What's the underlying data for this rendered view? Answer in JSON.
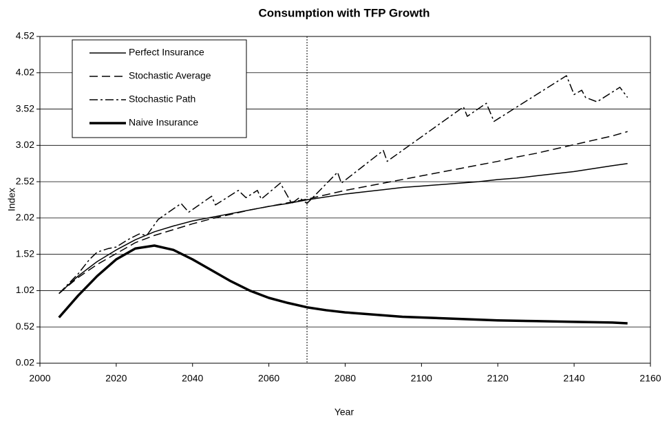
{
  "chart_data": {
    "type": "line",
    "title": "Consumption with TFP Growth",
    "xlabel": "Year",
    "ylabel": "Index",
    "xlim": [
      2000,
      2160
    ],
    "xticks": [
      2000,
      2020,
      2040,
      2060,
      2080,
      2100,
      2120,
      2140,
      2160
    ],
    "ylim": [
      0.02,
      4.52
    ],
    "yticks": [
      0.02,
      0.52,
      1.02,
      1.52,
      2.02,
      2.52,
      3.02,
      3.52,
      4.02,
      4.52
    ],
    "grid": true,
    "legend": "upper left",
    "vline": 2070,
    "series": [
      {
        "name": "Perfect Insurance",
        "color": "#000000",
        "style": "solid",
        "width": 1.5,
        "x": [
          2005,
          2010,
          2015,
          2020,
          2025,
          2030,
          2035,
          2040,
          2045,
          2050,
          2055,
          2060,
          2065,
          2070,
          2075,
          2080,
          2085,
          2090,
          2095,
          2100,
          2105,
          2110,
          2115,
          2120,
          2125,
          2130,
          2135,
          2140,
          2145,
          2150,
          2154
        ],
        "values": [
          0.98,
          1.22,
          1.42,
          1.58,
          1.72,
          1.83,
          1.91,
          1.98,
          2.03,
          2.08,
          2.13,
          2.18,
          2.22,
          2.27,
          2.31,
          2.35,
          2.38,
          2.41,
          2.44,
          2.46,
          2.48,
          2.5,
          2.52,
          2.55,
          2.57,
          2.6,
          2.63,
          2.66,
          2.7,
          2.74,
          2.77
        ]
      },
      {
        "name": "Stochastic Average",
        "color": "#000000",
        "style": "dashed",
        "width": 1.5,
        "x": [
          2005,
          2010,
          2015,
          2020,
          2025,
          2030,
          2035,
          2040,
          2045,
          2050,
          2055,
          2060,
          2065,
          2070,
          2075,
          2080,
          2085,
          2090,
          2095,
          2100,
          2105,
          2110,
          2115,
          2120,
          2125,
          2130,
          2135,
          2140,
          2145,
          2150,
          2154
        ],
        "values": [
          0.98,
          1.2,
          1.38,
          1.53,
          1.68,
          1.78,
          1.86,
          1.94,
          2.01,
          2.07,
          2.13,
          2.18,
          2.23,
          2.28,
          2.34,
          2.4,
          2.45,
          2.5,
          2.55,
          2.6,
          2.65,
          2.7,
          2.75,
          2.8,
          2.86,
          2.91,
          2.97,
          3.03,
          3.09,
          3.15,
          3.21
        ]
      },
      {
        "name": "Stochastic Path",
        "color": "#000000",
        "style": "dashdot",
        "width": 1.5,
        "x": [
          2005,
          2010,
          2013,
          2015,
          2018,
          2020,
          2023,
          2026,
          2028,
          2031,
          2037,
          2039,
          2045,
          2046,
          2052,
          2054,
          2057,
          2058,
          2063,
          2066,
          2068,
          2070,
          2078,
          2079,
          2090,
          2091,
          2111,
          2112,
          2117,
          2119,
          2138,
          2140,
          2142,
          2143,
          2146,
          2152,
          2154
        ],
        "values": [
          0.98,
          1.25,
          1.45,
          1.55,
          1.6,
          1.62,
          1.72,
          1.8,
          1.78,
          2.0,
          2.22,
          2.1,
          2.32,
          2.2,
          2.4,
          2.3,
          2.4,
          2.28,
          2.5,
          2.22,
          2.3,
          2.22,
          2.65,
          2.5,
          2.95,
          2.8,
          3.55,
          3.42,
          3.6,
          3.35,
          3.98,
          3.72,
          3.78,
          3.68,
          3.62,
          3.82,
          3.68
        ]
      },
      {
        "name": "Naive Insurance",
        "color": "#000000",
        "style": "solid",
        "width": 3.5,
        "x": [
          2005,
          2010,
          2015,
          2020,
          2025,
          2030,
          2035,
          2040,
          2045,
          2050,
          2055,
          2060,
          2065,
          2070,
          2075,
          2080,
          2085,
          2090,
          2095,
          2100,
          2110,
          2120,
          2130,
          2140,
          2150,
          2154
        ],
        "values": [
          0.65,
          0.95,
          1.22,
          1.45,
          1.6,
          1.64,
          1.58,
          1.45,
          1.3,
          1.15,
          1.02,
          0.92,
          0.85,
          0.79,
          0.75,
          0.72,
          0.7,
          0.68,
          0.66,
          0.65,
          0.63,
          0.61,
          0.6,
          0.59,
          0.58,
          0.57
        ]
      }
    ]
  }
}
